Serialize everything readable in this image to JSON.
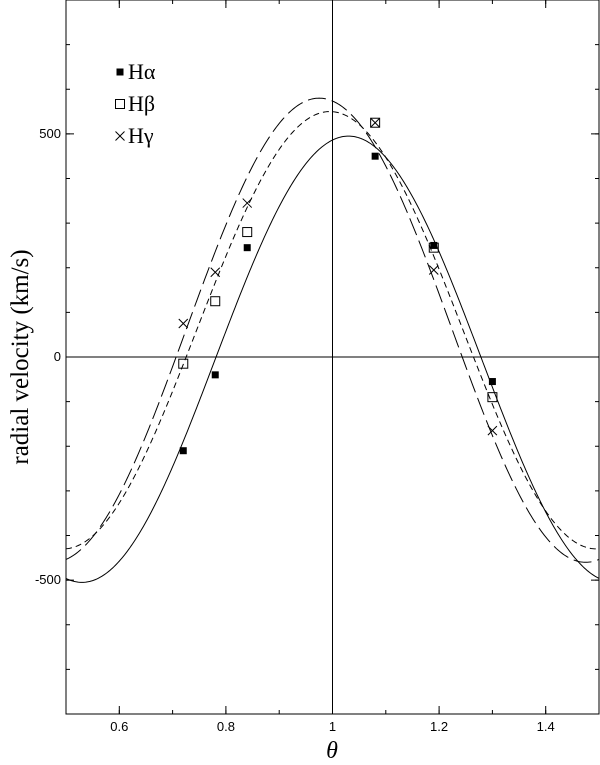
{
  "chart_data": {
    "type": "scatter",
    "title": "",
    "xlabel": "θ",
    "ylabel": "radial velocity (km/s)",
    "xlim": [
      0.5,
      1.5
    ],
    "ylim": [
      -800,
      800
    ],
    "xticks": [
      0.6,
      0.8,
      1.0,
      1.2,
      1.4
    ],
    "xtick_labels": [
      "0.6",
      "0.8",
      "1",
      "1.2",
      "1.4"
    ],
    "yticks": [
      -500,
      0,
      500
    ],
    "ytick_labels": [
      "-500",
      "0",
      "500"
    ],
    "reference_lines": {
      "x": 1.0,
      "y": 0
    },
    "grid": false,
    "legend": {
      "placement": "top-left"
    },
    "series": [
      {
        "name": "Hα",
        "marker": "filled-square",
        "x": [
          0.72,
          0.78,
          0.84,
          1.08,
          1.19,
          1.3
        ],
        "y": [
          -210,
          -40,
          245,
          450,
          250,
          -55
        ]
      },
      {
        "name": "Hβ",
        "marker": "open-square",
        "x": [
          0.72,
          0.78,
          0.84,
          1.08,
          1.19,
          1.3
        ],
        "y": [
          -15,
          125,
          280,
          525,
          245,
          -90
        ]
      },
      {
        "name": "Hγ",
        "marker": "cross",
        "x": [
          0.72,
          0.78,
          0.84,
          1.08,
          1.19,
          1.3
        ],
        "y": [
          75,
          190,
          345,
          525,
          195,
          -165
        ]
      }
    ],
    "curves": [
      {
        "style": "solid",
        "mean": -5,
        "amplitude": 500,
        "peak_phase": 1.03
      },
      {
        "style": "short-dash",
        "mean": 60,
        "amplitude": 490,
        "peak_phase": 0.995
      },
      {
        "style": "long-dash",
        "mean": 60,
        "amplitude": 520,
        "peak_phase": 0.975
      }
    ]
  }
}
